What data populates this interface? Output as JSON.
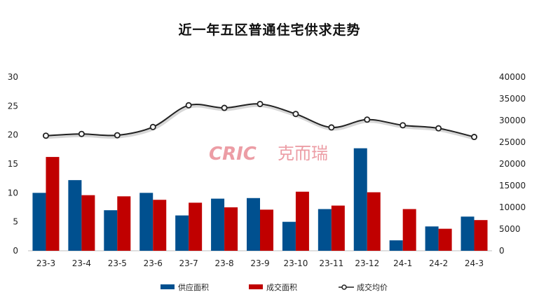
{
  "chart_data": {
    "type": "bar",
    "title": "近一年五区普通住宅供求走势",
    "categories": [
      "23-3",
      "23-4",
      "23-5",
      "23-6",
      "23-7",
      "23-8",
      "23-9",
      "23-10",
      "23-11",
      "23-12",
      "24-1",
      "24-2",
      "24-3"
    ],
    "series": [
      {
        "name": "供应面积",
        "type": "bar",
        "axis": "left",
        "color": "#00508f",
        "values": [
          10.0,
          12.2,
          7.0,
          10.0,
          6.1,
          9.0,
          9.1,
          5.0,
          7.2,
          17.7,
          1.8,
          4.2,
          5.9
        ]
      },
      {
        "name": "成交面积",
        "type": "bar",
        "axis": "left",
        "color": "#c00000",
        "values": [
          16.2,
          9.6,
          9.4,
          8.8,
          8.3,
          7.5,
          7.1,
          10.2,
          7.8,
          10.1,
          7.2,
          3.8,
          5.3
        ]
      },
      {
        "name": "成交均价",
        "type": "line",
        "axis": "right",
        "color": "#222222",
        "values": [
          26500,
          26900,
          26600,
          28500,
          33500,
          32900,
          33800,
          31500,
          28400,
          30200,
          28900,
          28200,
          26200
        ]
      }
    ],
    "y_left": {
      "min": 0,
      "max": 30,
      "ticks": [
        "0",
        "5",
        "10",
        "15",
        "20",
        "25",
        "30"
      ]
    },
    "y_right": {
      "min": 0,
      "max": 40000,
      "ticks": [
        "0",
        "5000",
        "10000",
        "15000",
        "20000",
        "25000",
        "30000",
        "35000",
        "40000"
      ]
    },
    "grid": false,
    "legend_position": "bottom"
  },
  "watermark": {
    "latin": "CRIC",
    "cjk": "克而瑞"
  }
}
